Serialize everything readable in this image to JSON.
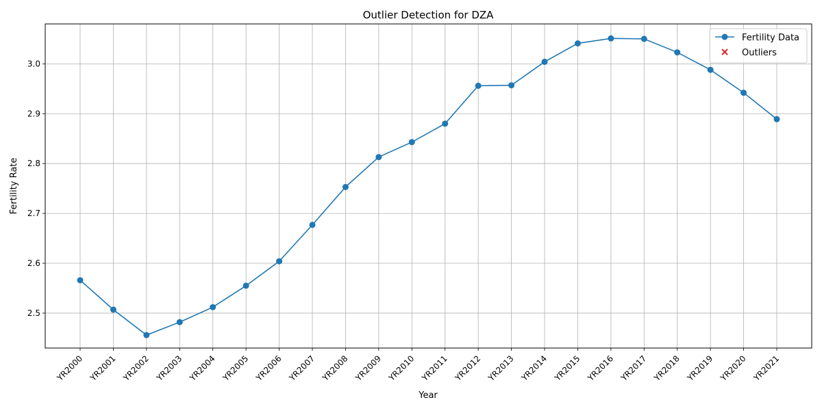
{
  "chart_data": {
    "type": "line",
    "title": "Outlier Detection for DZA",
    "xlabel": "Year",
    "ylabel": "Fertility Rate",
    "categories": [
      "YR2000",
      "YR2001",
      "YR2002",
      "YR2003",
      "YR2004",
      "YR2005",
      "YR2006",
      "YR2007",
      "YR2008",
      "YR2009",
      "YR2010",
      "YR2011",
      "YR2012",
      "YR2013",
      "YR2014",
      "YR2015",
      "YR2016",
      "YR2017",
      "YR2018",
      "YR2019",
      "YR2020",
      "YR2021"
    ],
    "series": [
      {
        "name": "Fertility Data",
        "color": "#1f77b4",
        "values": [
          2.566,
          2.507,
          2.456,
          2.482,
          2.512,
          2.555,
          2.604,
          2.677,
          2.753,
          2.813,
          2.843,
          2.88,
          2.956,
          2.957,
          3.004,
          3.041,
          3.051,
          3.05,
          3.023,
          2.988,
          2.942,
          2.889
        ]
      }
    ],
    "outliers": {
      "name": "Outliers",
      "color": "#d62728",
      "values": []
    },
    "ylim": [
      2.43,
      3.08
    ],
    "yticks": [
      2.5,
      2.6,
      2.7,
      2.8,
      2.9,
      3.0
    ],
    "grid": true,
    "legend_position": "top-right"
  }
}
